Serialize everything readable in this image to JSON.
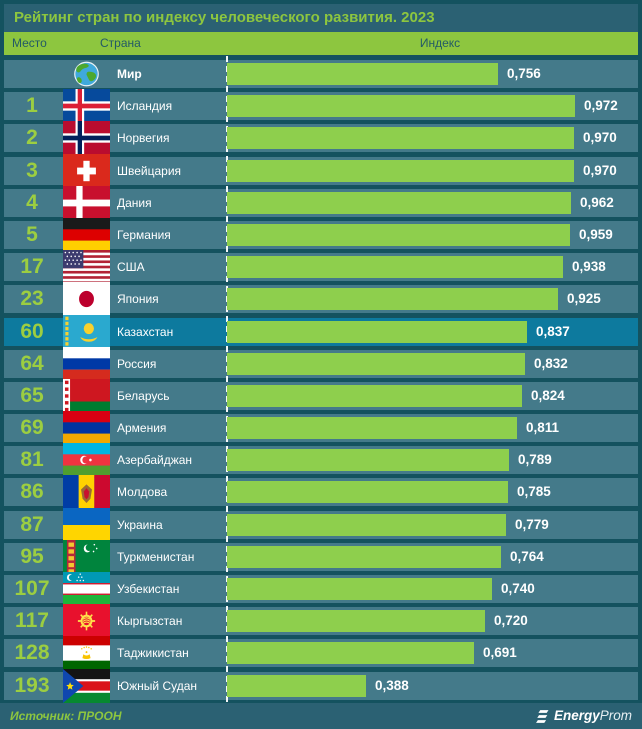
{
  "title": "Рейтинг стран по индексу человеческого развития. 2023",
  "columns": {
    "rank": "Место",
    "country": "Страна",
    "index": "Индекс"
  },
  "source_label": "Источник: ПРООН",
  "brand": {
    "icon": "energyprom-logo-icon",
    "bold": "Energy",
    "light": "Prom"
  },
  "colors": {
    "background": "#14525f",
    "band": "#2b6173",
    "row": "#447a8a",
    "highlight_row": "#0d7a9e",
    "bar": "#8ecf4d",
    "header_band": "#8dc63f",
    "accent_green": "#8dc63f",
    "rank_text": "#9cce41",
    "text": "#ffffff"
  },
  "chart_data": {
    "type": "bar",
    "orientation": "horizontal",
    "title": "Рейтинг стран по индексу человеческого развития. 2023",
    "xlabel": "Индекс",
    "ylabel": "Страна",
    "xlim": [
      0,
      1
    ],
    "grid": false,
    "legend": false,
    "highlight_category": "Казахстан",
    "ranks": [
      "",
      "1",
      "2",
      "3",
      "4",
      "5",
      "17",
      "23",
      "60",
      "64",
      "65",
      "69",
      "81",
      "86",
      "87",
      "95",
      "107",
      "117",
      "128",
      "193"
    ],
    "categories": [
      "Мир",
      "Исландия",
      "Норвегия",
      "Швейцария",
      "Дания",
      "Германия",
      "США",
      "Япония",
      "Казахстан",
      "Россия",
      "Беларусь",
      "Армения",
      "Азербайджан",
      "Молдова",
      "Украина",
      "Туркменистан",
      "Узбекистан",
      "Кыргызстан",
      "Таджикистан",
      "Южный Судан"
    ],
    "values": [
      0.756,
      0.972,
      0.97,
      0.97,
      0.962,
      0.959,
      0.938,
      0.925,
      0.837,
      0.832,
      0.824,
      0.811,
      0.789,
      0.785,
      0.779,
      0.764,
      0.74,
      0.72,
      0.691,
      0.388
    ],
    "value_labels": [
      "0,756",
      "0,972",
      "0,970",
      "0,970",
      "0,962",
      "0,959",
      "0,938",
      "0,925",
      "0,837",
      "0,832",
      "0,824",
      "0,811",
      "0,789",
      "0,785",
      "0,779",
      "0,764",
      "0,740",
      "0,720",
      "0,691",
      "0,388"
    ],
    "flag_icons": [
      "world",
      "iceland",
      "norway",
      "switzerland",
      "denmark",
      "germany",
      "usa",
      "japan",
      "kazakhstan",
      "russia",
      "belarus",
      "armenia",
      "azerbaijan",
      "moldova",
      "ukraine",
      "turkmenistan",
      "uzbekistan",
      "kyrgyzstan",
      "tajikistan",
      "south-sudan"
    ]
  }
}
